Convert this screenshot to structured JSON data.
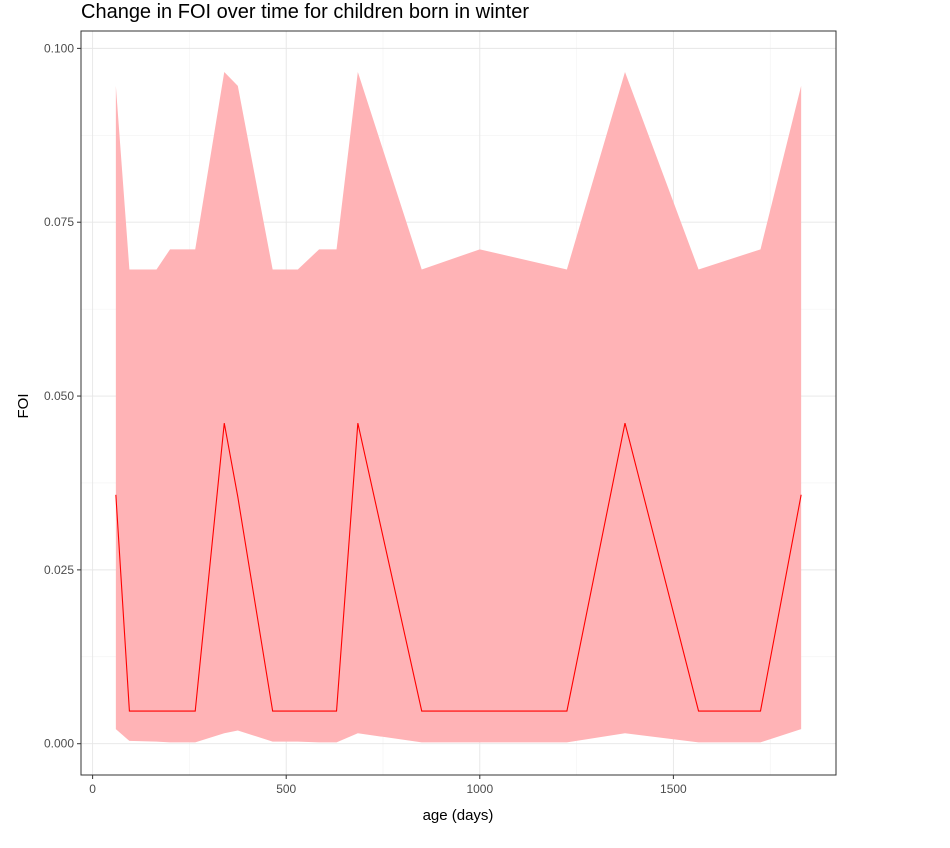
{
  "chart_data": {
    "type": "area",
    "title": "Change in FOI over time for children born in winter",
    "xlabel": "age (days)",
    "ylabel": "FOI",
    "xlim": [
      -30,
      1920
    ],
    "ylim": [
      -0.0045,
      0.1025
    ],
    "x_ticks": [
      0,
      500,
      1000,
      1500
    ],
    "x_tick_labels": [
      "0",
      "500",
      "1000",
      "1500"
    ],
    "y_ticks": [
      0,
      0.025,
      0.05,
      0.075,
      0.1
    ],
    "y_tick_labels": [
      "0.000",
      "0.025",
      "0.050",
      "0.075",
      "0.100"
    ],
    "grid": true,
    "series": [
      {
        "name": "FOI",
        "color": "#ff0000",
        "ribbon_color": "#ffb3b6",
        "x": [
          60,
          95,
          165,
          200,
          265,
          340,
          375,
          465,
          530,
          585,
          630,
          685,
          850,
          1000,
          1225,
          1375,
          1565,
          1725,
          1830
        ],
        "y": [
          0.0358,
          0.0047,
          0.0047,
          0.0047,
          0.0047,
          0.0461,
          0.0355,
          0.0047,
          0.0047,
          0.0047,
          0.0047,
          0.0461,
          0.0047,
          0.0047,
          0.0047,
          0.0461,
          0.0047,
          0.0047,
          0.0358
        ],
        "lower": [
          0.0021,
          0.0004,
          0.0003,
          0.0002,
          0.0002,
          0.0015,
          0.0019,
          0.0003,
          0.0003,
          0.0002,
          0.0002,
          0.0015,
          0.0002,
          0.0002,
          0.0002,
          0.0015,
          0.0002,
          0.0002,
          0.0021
        ],
        "upper": [
          0.0946,
          0.0682,
          0.0682,
          0.0711,
          0.0711,
          0.0966,
          0.0946,
          0.0682,
          0.0682,
          0.0711,
          0.0711,
          0.0966,
          0.0682,
          0.0711,
          0.0682,
          0.0966,
          0.0682,
          0.0711,
          0.0946
        ]
      }
    ]
  }
}
